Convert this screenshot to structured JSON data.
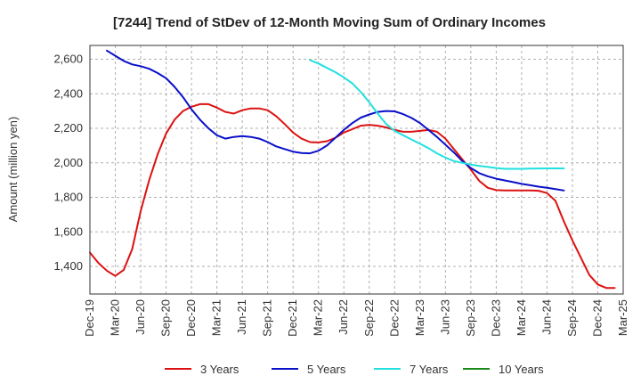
{
  "chart_data": {
    "type": "line",
    "title": "[7244]  Trend of StDev of 12-Month Moving Sum of Ordinary Incomes",
    "xlabel": "",
    "ylabel": "Amount (million yen)",
    "ylim": [
      1240,
      2680
    ],
    "yticks": [
      1400,
      1600,
      1800,
      2000,
      2200,
      2400,
      2600
    ],
    "ytick_labels": [
      "1,400",
      "1,600",
      "1,800",
      "2,000",
      "2,200",
      "2,400",
      "2,600"
    ],
    "xticks": [
      "Dec-19",
      "Mar-20",
      "Jun-20",
      "Sep-20",
      "Dec-20",
      "Mar-21",
      "Jun-21",
      "Sep-21",
      "Dec-21",
      "Mar-22",
      "Jun-22",
      "Sep-22",
      "Dec-22",
      "Mar-23",
      "Jun-23",
      "Sep-23",
      "Dec-23",
      "Mar-24",
      "Jun-24",
      "Sep-24",
      "Dec-24",
      "Mar-25"
    ],
    "x_unit": "months since Dec-19",
    "xlim": [
      0,
      63
    ],
    "grid": true,
    "legend_position": "bottom",
    "colors": {
      "series_3y": "#dd1111",
      "series_5y": "#0a10c8",
      "series_7y": "#22e0e0",
      "series_10y": "#1a8a1a",
      "grid": "#b0b0b0",
      "axis": "#333333"
    },
    "series": [
      {
        "name": "3 Years",
        "color": "#dd1111",
        "start": 0,
        "values": [
          1480,
          1420,
          1375,
          1345,
          1380,
          1500,
          1720,
          1900,
          2050,
          2170,
          2250,
          2300,
          2325,
          2340,
          2340,
          2320,
          2295,
          2285,
          2305,
          2315,
          2315,
          2305,
          2270,
          2225,
          2175,
          2140,
          2120,
          2118,
          2125,
          2145,
          2175,
          2195,
          2215,
          2220,
          2215,
          2205,
          2190,
          2180,
          2180,
          2185,
          2190,
          2180,
          2140,
          2080,
          2020,
          1960,
          1895,
          1855,
          1842,
          1840,
          1840,
          1840,
          1840,
          1838,
          1825,
          1780,
          1660,
          1550,
          1450,
          1350,
          1295,
          1275,
          1275
        ]
      },
      {
        "name": "5 Years",
        "color": "#0a10c8",
        "start": 2,
        "values": [
          2650,
          2620,
          2590,
          2570,
          2560,
          2545,
          2520,
          2490,
          2440,
          2380,
          2310,
          2250,
          2200,
          2160,
          2140,
          2150,
          2155,
          2150,
          2140,
          2120,
          2095,
          2080,
          2065,
          2057,
          2055,
          2070,
          2100,
          2145,
          2190,
          2230,
          2262,
          2280,
          2295,
          2300,
          2298,
          2282,
          2260,
          2230,
          2190,
          2150,
          2105,
          2060,
          2010,
          1970,
          1940,
          1922,
          1908,
          1898,
          1888,
          1878,
          1870,
          1862,
          1855,
          1848,
          1840
        ]
      },
      {
        "name": "7 Years",
        "color": "#22e0e0",
        "start": 26,
        "values": [
          2595,
          2575,
          2550,
          2525,
          2495,
          2460,
          2410,
          2350,
          2285,
          2225,
          2185,
          2160,
          2135,
          2110,
          2085,
          2055,
          2030,
          2010,
          2000,
          1990,
          1982,
          1976,
          1970,
          1965,
          1965,
          1965,
          1966,
          1967,
          1968,
          1968,
          1968
        ]
      },
      {
        "name": "10 Years",
        "color": "#1a8a1a",
        "start": 0,
        "values": []
      }
    ]
  }
}
